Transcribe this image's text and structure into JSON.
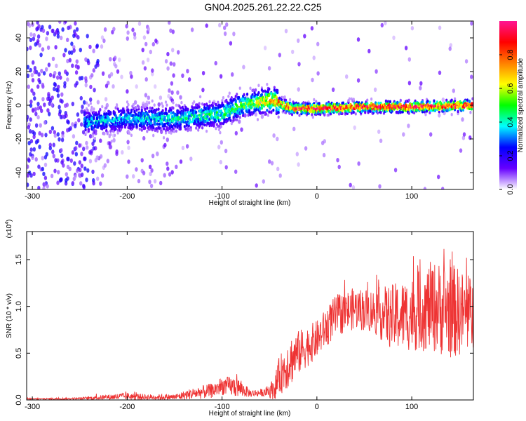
{
  "title": "GN04.2025.261.22.22.C25",
  "chart_data": [
    {
      "type": "heatmap",
      "title": "GN04.2025.261.22.22.C25",
      "xlabel": "Height of straight line (km)",
      "ylabel": "Frequency (Hz)",
      "xlim": [
        -306,
        165
      ],
      "ylim": [
        -50,
        50
      ],
      "x_ticks": [
        -300,
        -200,
        -100,
        0,
        100
      ],
      "y_ticks": [
        -40,
        -20,
        0,
        20,
        40
      ],
      "colorbar": {
        "label": "Normalized spectral amplitude",
        "range": [
          0,
          1
        ],
        "ticks": [
          "0.0",
          "0.2",
          "0.4",
          "0.6",
          "0.8"
        ],
        "colors": [
          "#ffffff",
          "#6600ff",
          "#0000ff",
          "#00ffff",
          "#00ff00",
          "#ffff00",
          "#ff7f00",
          "#ff0000",
          "#ff1493"
        ]
      },
      "ridge": {
        "x": [
          -240,
          -200,
          -150,
          -100,
          -80,
          -60,
          -45,
          -35,
          -25,
          0,
          50,
          100,
          165
        ],
        "freq": [
          -10,
          -8,
          -8,
          -5,
          0,
          2,
          3,
          0,
          -2,
          -2,
          -1,
          -1,
          0
        ]
      },
      "ridge_amplitude": {
        "x": [
          -240,
          -200,
          -150,
          -100,
          -80,
          -60,
          -45,
          -30,
          0,
          165
        ],
        "amp": [
          0.35,
          0.35,
          0.4,
          0.45,
          0.5,
          0.6,
          0.7,
          0.85,
          0.9,
          0.9
        ]
      }
    },
    {
      "type": "line",
      "xlabel": "Height of straight line (km)",
      "ylabel": "SNR (10 * v/v)",
      "scale_label": "(x10",
      "scale_exponent": "4",
      "xlim": [
        -306,
        165
      ],
      "ylim": [
        0,
        18000
      ],
      "x_ticks": [
        -300,
        -200,
        -100,
        0,
        100
      ],
      "y_ticks": [
        0,
        5000,
        10000,
        15000
      ],
      "y_tick_labels": [
        "0.0",
        "0.5",
        "1.0",
        "1.5"
      ],
      "color": "#ee3333",
      "envelope": {
        "x": [
          -306,
          -250,
          -200,
          -180,
          -150,
          -130,
          -110,
          -100,
          -85,
          -70,
          -55,
          -45,
          -40,
          -30,
          -20,
          0,
          20,
          40,
          60,
          80,
          100,
          120,
          140,
          165
        ],
        "mean": [
          100,
          150,
          400,
          300,
          300,
          700,
          1000,
          1500,
          1400,
          700,
          800,
          1200,
          2500,
          4000,
          5000,
          6500,
          9000,
          9800,
          9500,
          8800,
          9200,
          10000,
          9600,
          9000
        ],
        "spread": [
          100,
          150,
          500,
          400,
          400,
          800,
          1000,
          1200,
          1400,
          500,
          500,
          1500,
          2500,
          3500,
          3000,
          2500,
          2800,
          2800,
          3000,
          4500,
          5000,
          6000,
          6500,
          5000
        ]
      }
    }
  ]
}
